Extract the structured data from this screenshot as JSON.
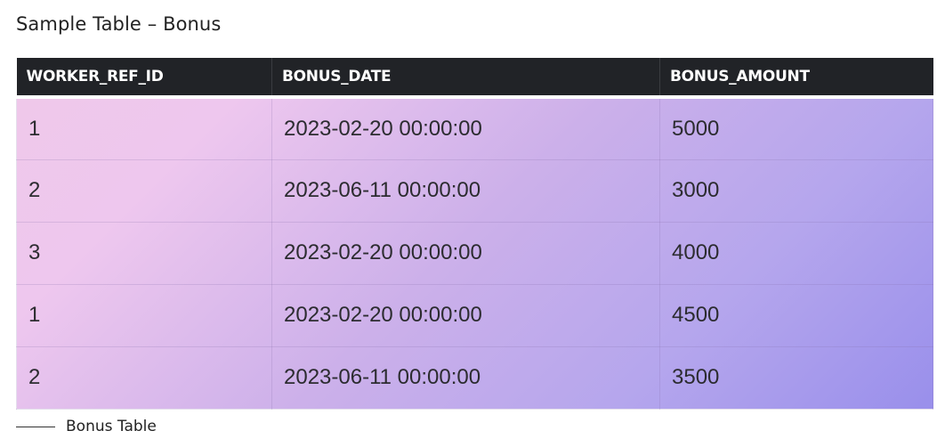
{
  "title": "Sample Table – Bonus",
  "table": {
    "columns": [
      "WORKER_REF_ID",
      "BONUS_DATE",
      "BONUS_AMOUNT"
    ],
    "rows": [
      [
        "1",
        "2023-02-20 00:00:00",
        "5000"
      ],
      [
        "2",
        "2023-06-11 00:00:00",
        "3000"
      ],
      [
        "3",
        "2023-02-20 00:00:00",
        "4000"
      ],
      [
        "1",
        "2023-02-20 00:00:00",
        "4500"
      ],
      [
        "2",
        "2023-06-11 00:00:00",
        "3500"
      ]
    ]
  },
  "caption": "Bonus Table",
  "colors": {
    "header_bg": "#212327",
    "header_text": "#ffffff",
    "gradient_start": "#efc8ea",
    "gradient_end": "#998feb"
  }
}
